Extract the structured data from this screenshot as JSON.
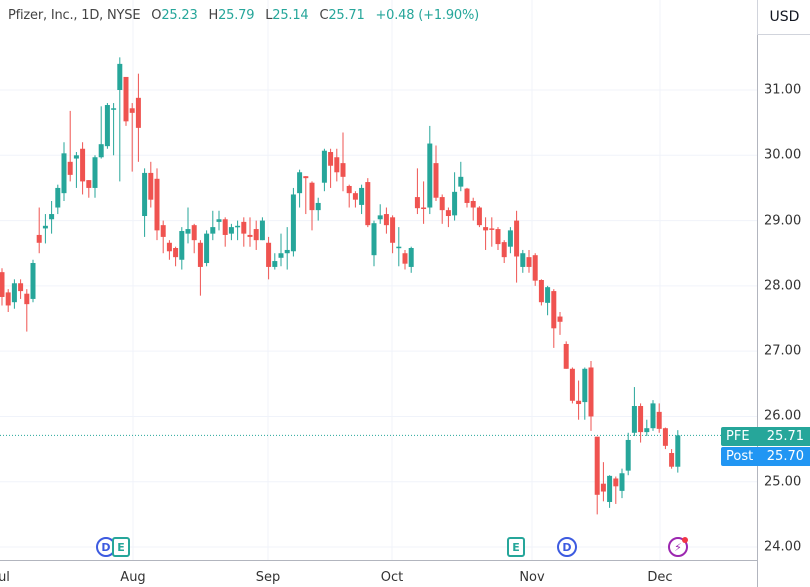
{
  "header": {
    "symbol_desc": "Pfizer, Inc., 1D, NYSE",
    "open_label": "O",
    "open": "25.23",
    "high_label": "H",
    "high": "25.79",
    "low_label": "L",
    "low": "25.14",
    "close_label": "C",
    "close": "25.71",
    "change": "+0.48 (+1.90%)"
  },
  "currency": "USD",
  "price_axis": [
    "31.00",
    "30.00",
    "29.00",
    "28.00",
    "27.00",
    "26.00",
    "25.00",
    "24.00"
  ],
  "time_axis": [
    "ul",
    "Aug",
    "Sep",
    "Oct",
    "Nov",
    "Dec"
  ],
  "badges": {
    "last": {
      "label": "PFE",
      "value": "25.71",
      "color": "#26a69a"
    },
    "post": {
      "label": "Post",
      "value": "25.70",
      "color": "#2196f3"
    }
  },
  "events": [
    {
      "type": "dividend",
      "label": "D",
      "icon": "dividend-icon"
    },
    {
      "type": "earnings",
      "label": "E",
      "icon": "earnings-icon"
    },
    {
      "type": "earnings",
      "label": "E",
      "icon": "earnings-icon"
    },
    {
      "type": "dividend",
      "label": "D",
      "icon": "dividend-icon"
    },
    {
      "type": "news",
      "label": "⚡",
      "icon": "lightning-icon"
    }
  ],
  "colors": {
    "up": "#26a69a",
    "down": "#ef5350",
    "grid": "#f0f3fa"
  },
  "chart_data": {
    "type": "candlestick",
    "title": "Pfizer, Inc., 1D, NYSE",
    "ylim": [
      23.7,
      32.4
    ],
    "yticks": [
      24,
      25,
      26,
      27,
      28,
      29,
      30,
      31
    ],
    "last_price": 25.71,
    "ohlc": [
      [
        28.21,
        28.27,
        27.7,
        27.83
      ],
      [
        27.9,
        27.95,
        27.6,
        27.7
      ],
      [
        27.75,
        28.1,
        27.65,
        28.04
      ],
      [
        28.04,
        28.1,
        27.8,
        27.92
      ],
      [
        27.88,
        27.95,
        27.3,
        27.72
      ],
      [
        27.8,
        28.4,
        27.75,
        28.35
      ],
      [
        28.78,
        29.2,
        28.5,
        28.66
      ],
      [
        28.88,
        29.1,
        28.65,
        28.92
      ],
      [
        29.02,
        29.3,
        28.8,
        29.1
      ],
      [
        29.2,
        29.55,
        29.1,
        29.5
      ],
      [
        29.42,
        30.2,
        29.3,
        30.03
      ],
      [
        29.9,
        30.68,
        29.6,
        29.7
      ],
      [
        29.95,
        30.05,
        29.5,
        30.0
      ],
      [
        30.1,
        30.2,
        29.4,
        29.6
      ],
      [
        29.62,
        29.62,
        29.35,
        29.5
      ],
      [
        29.5,
        30.0,
        29.35,
        29.97
      ],
      [
        29.97,
        30.75,
        29.95,
        30.17
      ],
      [
        30.14,
        30.8,
        30.1,
        30.77
      ],
      [
        30.7,
        30.8,
        30.0,
        30.72
      ],
      [
        31.0,
        31.5,
        29.6,
        31.4
      ],
      [
        31.2,
        31.2,
        30.45,
        30.52
      ],
      [
        30.72,
        30.8,
        29.75,
        30.65
      ],
      [
        30.88,
        31.25,
        29.9,
        30.42
      ],
      [
        29.07,
        29.8,
        28.75,
        29.73
      ],
      [
        29.73,
        29.9,
        29.2,
        29.32
      ],
      [
        29.64,
        29.8,
        28.7,
        28.85
      ],
      [
        28.93,
        29.0,
        28.5,
        28.75
      ],
      [
        28.66,
        28.7,
        28.4,
        28.53
      ],
      [
        28.58,
        28.6,
        28.3,
        28.44
      ],
      [
        28.4,
        28.9,
        28.25,
        28.84
      ],
      [
        28.8,
        29.2,
        28.65,
        28.87
      ],
      [
        28.93,
        28.95,
        28.5,
        28.7
      ],
      [
        28.66,
        28.7,
        27.85,
        28.29
      ],
      [
        28.35,
        28.85,
        28.3,
        28.8
      ],
      [
        28.8,
        29.15,
        28.7,
        28.9
      ],
      [
        28.98,
        29.15,
        28.85,
        29.02
      ],
      [
        29.02,
        29.05,
        28.6,
        28.78
      ],
      [
        28.8,
        28.95,
        28.7,
        28.9
      ],
      [
        28.9,
        29.0,
        28.7,
        28.92
      ],
      [
        28.98,
        29.05,
        28.6,
        28.8
      ],
      [
        28.78,
        29.05,
        28.6,
        28.75
      ],
      [
        28.87,
        29.0,
        28.55,
        28.7
      ],
      [
        28.7,
        29.05,
        28.7,
        29.0
      ],
      [
        28.66,
        28.75,
        28.1,
        28.29
      ],
      [
        28.29,
        28.5,
        28.25,
        28.38
      ],
      [
        28.43,
        28.8,
        28.3,
        28.5
      ],
      [
        28.5,
        28.9,
        28.25,
        28.55
      ],
      [
        28.53,
        29.5,
        28.45,
        29.4
      ],
      [
        29.42,
        29.78,
        29.2,
        29.74
      ],
      [
        29.68,
        29.68,
        29.1,
        29.65
      ],
      [
        29.58,
        29.6,
        28.85,
        29.16
      ],
      [
        29.16,
        29.35,
        29.0,
        29.27
      ],
      [
        29.58,
        30.1,
        29.45,
        30.07
      ],
      [
        30.05,
        30.1,
        29.5,
        29.84
      ],
      [
        29.97,
        30.1,
        29.6,
        29.74
      ],
      [
        29.88,
        30.35,
        29.45,
        29.67
      ],
      [
        29.53,
        29.55,
        29.2,
        29.42
      ],
      [
        29.42,
        29.45,
        29.2,
        29.32
      ],
      [
        29.24,
        29.55,
        29.1,
        29.5
      ],
      [
        29.59,
        29.65,
        28.9,
        28.93
      ],
      [
        28.47,
        29.0,
        28.3,
        28.96
      ],
      [
        29.02,
        29.25,
        28.95,
        29.08
      ],
      [
        29.1,
        29.2,
        28.8,
        28.93
      ],
      [
        29.05,
        29.08,
        28.5,
        28.66
      ],
      [
        28.58,
        28.9,
        28.3,
        28.6
      ],
      [
        28.5,
        28.55,
        28.25,
        28.34
      ],
      [
        28.29,
        28.6,
        28.2,
        28.58
      ],
      [
        29.36,
        29.8,
        29.1,
        29.19
      ],
      [
        29.2,
        29.6,
        28.95,
        29.18
      ],
      [
        29.2,
        30.45,
        29.1,
        30.18
      ],
      [
        29.88,
        30.15,
        29.3,
        29.35
      ],
      [
        29.36,
        29.4,
        28.95,
        29.16
      ],
      [
        29.16,
        29.2,
        28.9,
        29.07
      ],
      [
        29.08,
        29.74,
        29.0,
        29.44
      ],
      [
        29.52,
        29.9,
        29.45,
        29.67
      ],
      [
        29.49,
        29.5,
        29.2,
        29.27
      ],
      [
        29.3,
        29.35,
        29.0,
        29.2
      ],
      [
        29.2,
        29.22,
        28.9,
        28.93
      ],
      [
        28.9,
        29.05,
        28.55,
        28.85
      ],
      [
        28.88,
        29.05,
        28.6,
        28.86
      ],
      [
        28.87,
        28.9,
        28.55,
        28.64
      ],
      [
        28.67,
        28.7,
        28.35,
        28.44
      ],
      [
        28.6,
        28.9,
        28.5,
        28.85
      ],
      [
        29.0,
        29.15,
        28.05,
        28.45
      ],
      [
        28.29,
        28.55,
        28.2,
        28.5
      ],
      [
        28.44,
        28.55,
        28.2,
        28.29
      ],
      [
        28.47,
        28.5,
        28.0,
        28.08
      ],
      [
        28.09,
        28.1,
        27.7,
        27.75
      ],
      [
        27.74,
        28.0,
        27.55,
        27.98
      ],
      [
        27.92,
        27.95,
        27.05,
        27.35
      ],
      [
        27.53,
        27.6,
        27.25,
        27.45
      ],
      [
        27.11,
        27.15,
        26.73,
        26.73
      ],
      [
        26.73,
        26.75,
        26.2,
        26.24
      ],
      [
        26.24,
        26.55,
        25.95,
        26.19
      ],
      [
        26.22,
        26.75,
        25.95,
        26.73
      ],
      [
        26.75,
        26.85,
        25.78,
        26.0
      ],
      [
        25.69,
        25.69,
        24.5,
        24.8
      ],
      [
        24.97,
        25.3,
        24.7,
        24.85
      ],
      [
        24.69,
        25.1,
        24.6,
        25.09
      ],
      [
        25.05,
        25.08,
        24.66,
        24.93
      ],
      [
        24.86,
        25.2,
        24.75,
        25.13
      ],
      [
        25.17,
        25.75,
        25.1,
        25.64
      ],
      [
        25.75,
        26.45,
        25.7,
        26.16
      ],
      [
        26.16,
        26.2,
        25.6,
        25.76
      ],
      [
        25.76,
        25.95,
        25.7,
        25.82
      ],
      [
        25.82,
        26.25,
        25.78,
        26.2
      ],
      [
        26.07,
        26.2,
        25.75,
        25.81
      ],
      [
        25.82,
        25.83,
        25.5,
        25.55
      ],
      [
        25.44,
        25.5,
        25.2,
        25.23
      ],
      [
        25.23,
        25.79,
        25.14,
        25.71
      ]
    ]
  }
}
